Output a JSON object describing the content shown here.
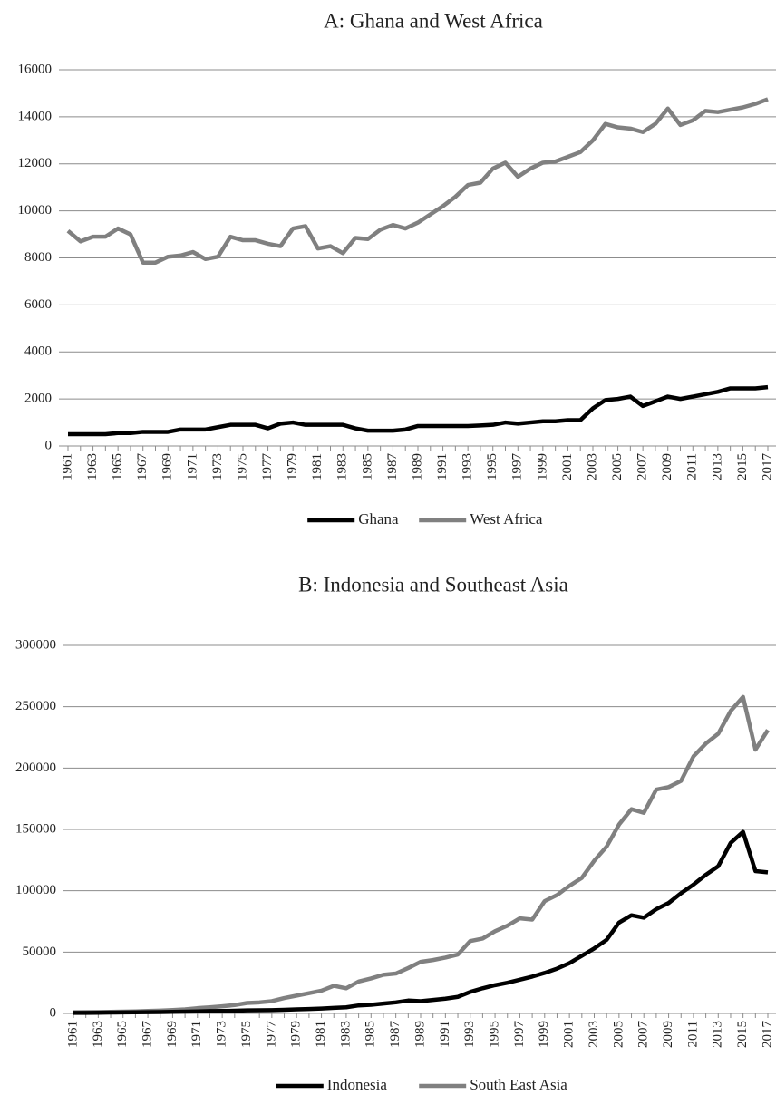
{
  "chart_data": [
    {
      "type": "line",
      "title": "A: Ghana and West Africa",
      "categories": [
        "1961",
        null,
        "1963",
        null,
        "1965",
        null,
        "1967",
        null,
        "1969",
        null,
        "1971",
        null,
        "1973",
        null,
        "1975",
        null,
        "1977",
        null,
        "1979",
        null,
        "1981",
        null,
        "1983",
        null,
        "1985",
        null,
        "1987",
        null,
        "1989",
        null,
        "1991",
        null,
        "1993",
        null,
        "1995",
        null,
        "1997",
        null,
        "1999",
        null,
        "2001",
        null,
        "2003",
        null,
        "2005",
        null,
        "2007",
        null,
        "2009",
        null,
        "2011",
        null,
        "2013",
        null,
        "2015",
        null,
        "2017"
      ],
      "series": [
        {
          "name": "Ghana",
          "color": "#000000",
          "values": [
            500,
            500,
            500,
            500,
            550,
            550,
            600,
            600,
            600,
            700,
            700,
            700,
            800,
            900,
            900,
            900,
            750,
            950,
            1000,
            900,
            900,
            900,
            900,
            750,
            650,
            650,
            650,
            700,
            850,
            850,
            850,
            850,
            850,
            870,
            900,
            1000,
            950,
            1000,
            1050,
            1050,
            1100,
            1100,
            1600,
            1950,
            2000,
            2100,
            1700,
            1900,
            2100,
            2000,
            2100,
            2200,
            2300,
            2450,
            2450,
            2450,
            2500
          ]
        },
        {
          "name": "West Africa",
          "color": "#808080",
          "values": [
            9150,
            8700,
            8900,
            8900,
            9250,
            9000,
            7800,
            7800,
            8050,
            8100,
            8250,
            7950,
            8050,
            8900,
            8750,
            8750,
            8600,
            8500,
            9250,
            9350,
            8400,
            8500,
            8200,
            8850,
            8800,
            9200,
            9400,
            9250,
            9500,
            9850,
            10200,
            10600,
            11100,
            11200,
            11800,
            12050,
            11450,
            11800,
            12050,
            12100,
            12300,
            12500,
            13000,
            13700,
            13550,
            13500,
            13350,
            13700,
            14350,
            13650,
            13850,
            14250,
            14200,
            14300,
            14400,
            14550,
            14750
          ]
        }
      ],
      "ylim": [
        0,
        16000
      ],
      "yticks": [
        0,
        2000,
        4000,
        6000,
        8000,
        10000,
        12000,
        14000,
        16000
      ],
      "grid": true,
      "legend": "bottom"
    },
    {
      "type": "line",
      "title": "B: Indonesia and Southeast Asia",
      "categories": [
        "1961",
        null,
        "1963",
        null,
        "1965",
        null,
        "1967",
        null,
        "1969",
        null,
        "1971",
        null,
        "1973",
        null,
        "1975",
        null,
        "1977",
        null,
        "1979",
        null,
        "1981",
        null,
        "1983",
        null,
        "1985",
        null,
        "1987",
        null,
        "1989",
        null,
        "1991",
        null,
        "1993",
        null,
        "1995",
        null,
        "1997",
        null,
        "1999",
        null,
        "2001",
        null,
        "2003",
        null,
        "2005",
        null,
        "2007",
        null,
        "2009",
        null,
        "2011",
        null,
        "2013",
        null,
        "2015",
        null,
        "2017"
      ],
      "series": [
        {
          "name": "Indonesia",
          "color": "#000000",
          "values": [
            500,
            500,
            600,
            700,
            800,
            900,
            1000,
            1100,
            1300,
            1500,
            1700,
            1900,
            2000,
            2200,
            2500,
            2600,
            2700,
            3000,
            3300,
            3600,
            4000,
            4500,
            5000,
            6500,
            7000,
            8000,
            9000,
            10500,
            10000,
            11000,
            12000,
            13500,
            17500,
            20500,
            23000,
            25000,
            27500,
            30000,
            33000,
            36500,
            41000,
            47000,
            53000,
            60000,
            74000,
            80000,
            78000,
            85000,
            90000,
            98000,
            105000,
            113000,
            120000,
            139000,
            148000,
            116000,
            115000
          ]
        },
        {
          "name": "South East Asia",
          "color": "#808080",
          "values": [
            1000,
            1100,
            1200,
            1300,
            1500,
            1700,
            2000,
            2300,
            2800,
            3300,
            4300,
            5000,
            5800,
            6800,
            8500,
            9000,
            10000,
            12500,
            14500,
            16500,
            18500,
            22500,
            20500,
            26000,
            28500,
            31500,
            32500,
            37000,
            42000,
            43500,
            45500,
            48000,
            59000,
            61000,
            67000,
            71500,
            77500,
            76500,
            91500,
            96500,
            104000,
            110500,
            124500,
            136000,
            154000,
            166500,
            163500,
            182500,
            184500,
            189500,
            209500,
            220000,
            228000,
            246500,
            258000,
            215000,
            231000
          ]
        }
      ],
      "ylim": [
        0,
        300000
      ],
      "yticks": [
        0,
        50000,
        100000,
        150000,
        200000,
        250000,
        300000
      ],
      "grid": true,
      "legend": "bottom"
    }
  ]
}
